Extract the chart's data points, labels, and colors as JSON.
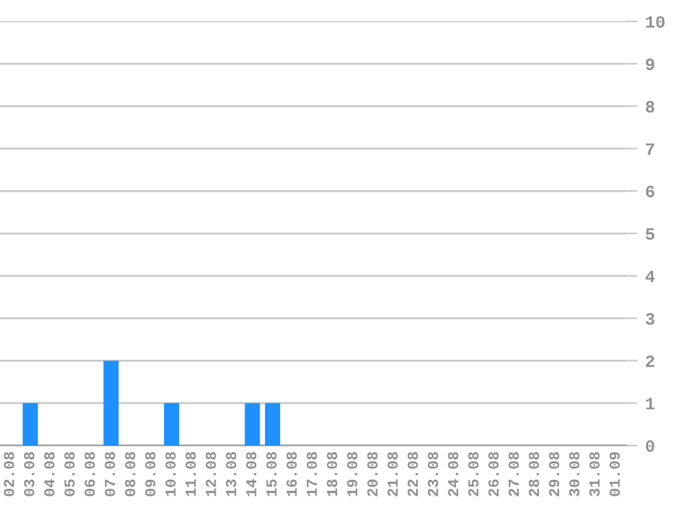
{
  "chart_data": {
    "type": "bar",
    "categories": [
      "02.08",
      "03.08",
      "04.08",
      "05.08",
      "06.08",
      "07.08",
      "08.08",
      "09.08",
      "10.08",
      "11.08",
      "12.08",
      "13.08",
      "14.08",
      "15.08",
      "16.08",
      "17.08",
      "18.08",
      "19.08",
      "20.08",
      "21.08",
      "22.08",
      "23.08",
      "24.08",
      "25.08",
      "26.08",
      "27.08",
      "28.08",
      "29.08",
      "30.08",
      "31.08",
      "01.09"
    ],
    "values": [
      0,
      1,
      0,
      0,
      0,
      2,
      0,
      0,
      1,
      0,
      0,
      0,
      1,
      1,
      0,
      0,
      0,
      0,
      0,
      0,
      0,
      0,
      0,
      0,
      0,
      0,
      0,
      0,
      0,
      0,
      0
    ],
    "color": "#1e90ff",
    "ylim": [
      0,
      10
    ],
    "yticks": [
      0,
      1,
      2,
      3,
      4,
      5,
      6,
      7,
      8,
      9,
      10
    ],
    "grid": "y"
  }
}
